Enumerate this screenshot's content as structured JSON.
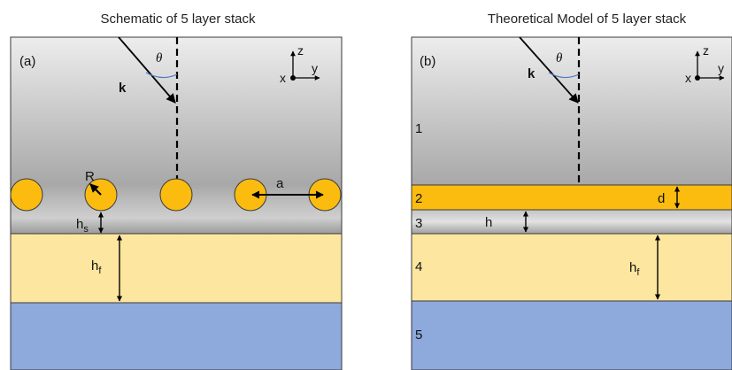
{
  "panel_a": {
    "title": "Schematic of 5 layer stack",
    "tag": "(a)",
    "k": "k",
    "theta": "θ",
    "R": "R",
    "a": "a",
    "hs_main": "h",
    "hs_sub": "s",
    "hf_main": "h",
    "hf_sub": "f",
    "axis": {
      "z": "z",
      "y": "y",
      "x": "x"
    }
  },
  "panel_b": {
    "title": "Theoretical Model of 5 layer stack",
    "tag": "(b)",
    "k": "k",
    "theta": "θ",
    "layers": [
      "1",
      "2",
      "3",
      "4",
      "5"
    ],
    "d": "d",
    "h": "h",
    "hf_main": "h",
    "hf_sub": "f",
    "axis": {
      "z": "z",
      "y": "y",
      "x": "x"
    }
  },
  "colors": {
    "superstrate_top": "#e6e6e6",
    "superstrate_bottom": "#a9a9a9",
    "particle": "#fbbc0f",
    "film": "#fde69f",
    "substrate": "#8ea9db",
    "outline": "#3a3a3a",
    "theta_arc": "#4a78c2"
  }
}
